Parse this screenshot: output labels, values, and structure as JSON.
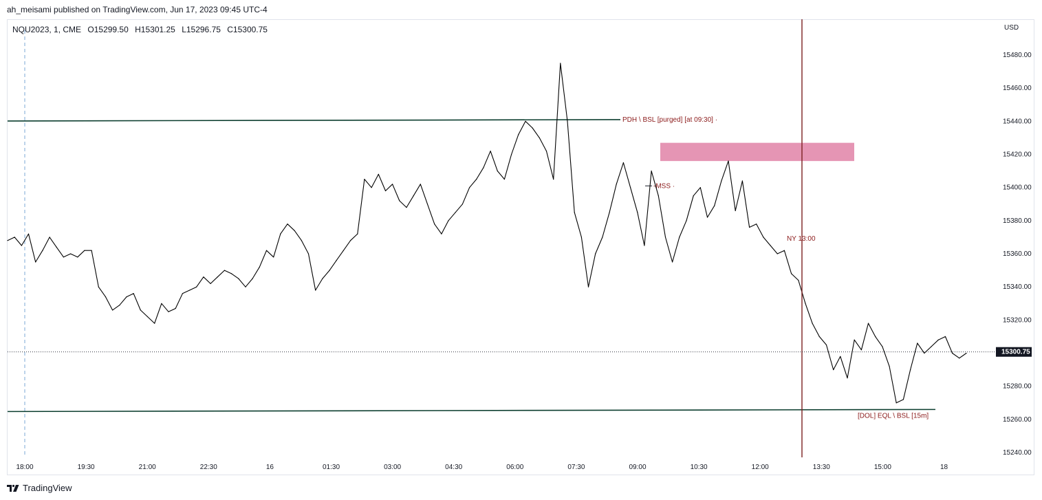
{
  "header": {
    "caption": "ah_meisami published on TradingView.com, Jun 17, 2023 09:45 UTC-4"
  },
  "symbol": {
    "name": "NQU2023, 1, CME",
    "open": "O15299.50",
    "high": "H15301.25",
    "low": "L15296.75",
    "close": "C15300.75"
  },
  "footer": {
    "brand": "TradingView",
    "logo_icon": "tradingview-logo-icon"
  },
  "chart_data": {
    "type": "line",
    "series": [
      {
        "values": [
          15368,
          15370,
          15365,
          15372,
          15355,
          15362,
          15370,
          15364,
          15358,
          15360,
          15358,
          15362,
          15362,
          15340,
          15334,
          15326,
          15329,
          15334,
          15336,
          15326,
          15322,
          15318,
          15330,
          15325,
          15327,
          15336,
          15338,
          15340,
          15346,
          15342,
          15346,
          15350,
          15348,
          15345,
          15340,
          15345,
          15352,
          15362,
          15358,
          15372,
          15378,
          15374,
          15368,
          15360,
          15338,
          15345,
          15350,
          15356,
          15362,
          15368,
          15372,
          15405,
          15400,
          15408,
          15398,
          15402,
          15392,
          15388,
          15395,
          15402,
          15390,
          15378,
          15372,
          15380,
          15385,
          15390,
          15400,
          15405,
          15412,
          15422,
          15410,
          15405,
          15420,
          15432,
          15440,
          15436,
          15430,
          15422,
          15405,
          15475,
          15440,
          15385,
          15370,
          15340,
          15360,
          15370,
          15385,
          15402,
          15415,
          15400,
          15385,
          15365,
          15410,
          15395,
          15370,
          15355,
          15370,
          15380,
          15395,
          15400,
          15382,
          15389,
          15404,
          15416,
          15386,
          15404,
          15376,
          15378,
          15370,
          15365,
          15360,
          15362,
          15348,
          15344,
          15330,
          15318,
          15310,
          15305,
          15290,
          15298,
          15285,
          15308,
          15302,
          15318,
          15310,
          15304,
          15292,
          15270,
          15272,
          15290,
          15306,
          15300,
          15304,
          15308,
          15310,
          15300,
          15297,
          15300
        ]
      }
    ],
    "x_tick_labels": [
      "18:00",
      "19:30",
      "21:00",
      "22:30",
      "16",
      "01:30",
      "03:00",
      "04:30",
      "06:00",
      "07:30",
      "09:00",
      "10:30",
      "12:00",
      "13:30",
      "15:00",
      "18"
    ],
    "y_tick_labels": [
      "15480.00",
      "15460.00",
      "15440.00",
      "15420.00",
      "15400.00",
      "15380.00",
      "15360.00",
      "15340.00",
      "15320.00",
      "15300.00",
      "15280.00",
      "15260.00",
      "15240.00"
    ],
    "ylim": [
      15240,
      15480
    ],
    "y_unit": "USD",
    "last_price": {
      "value": 15300.75,
      "label": "15300.75"
    },
    "levels": [
      {
        "value": 15441,
        "label": "PDH \\ BSL [purged] [at 09:30]",
        "color": "#0b3d2e"
      },
      {
        "value": 15266,
        "label": "[DOL]  EQL \\ BSL [15m]",
        "color": "#0b3d2e"
      },
      {
        "value": 15401,
        "label": "-MSS",
        "color": "#131722"
      }
    ],
    "zone": {
      "top": 15427,
      "bottom": 15416,
      "color": "#e48fb0"
    },
    "session_marker": {
      "label": "NY 13:00",
      "color": "#7a1f1f"
    },
    "grid": false
  }
}
